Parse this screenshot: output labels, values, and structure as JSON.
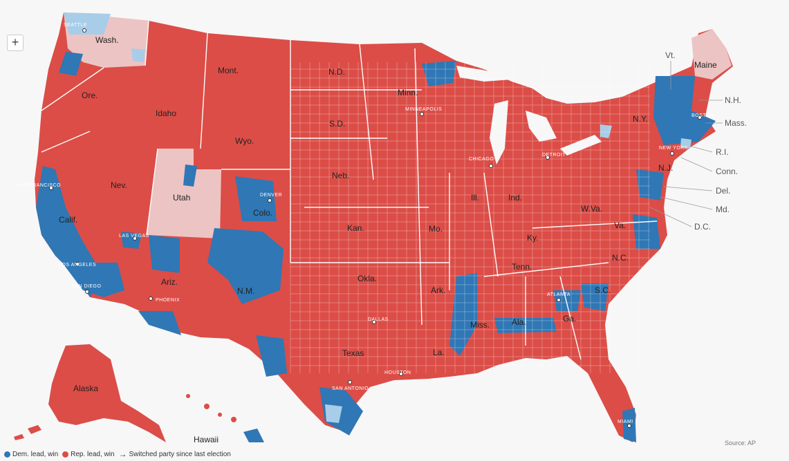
{
  "controls": {
    "zoom_in": "+"
  },
  "colors": {
    "dem": "#2f77b5",
    "dem_light": "#a8cde8",
    "rep": "#dc4d47",
    "rep_light": "#ecc4c4",
    "border": "#ffffff",
    "background": "#f7f7f7"
  },
  "legend": {
    "dem": "Dem. lead, win",
    "rep": "Rep. lead, win",
    "switched": "Switched party since last election"
  },
  "source": "Source: AP",
  "state_labels": {
    "wash": "Wash.",
    "ore": "Ore.",
    "calif": "Calif.",
    "nev": "Nev.",
    "idaho": "Idaho",
    "mont": "Mont.",
    "wyo": "Wyo.",
    "utah": "Utah",
    "colo": "Colo.",
    "ariz": "Ariz.",
    "nm": "N.M.",
    "nd": "N.D.",
    "sd": "S.D.",
    "neb": "Neb.",
    "kan": "Kan.",
    "okla": "Okla.",
    "texas": "Texas",
    "minn": "Minn.",
    "mo": "Mo.",
    "ark": "Ark.",
    "la": "La.",
    "ill": "Ill.",
    "ind": "Ind.",
    "ky": "Ky.",
    "tenn": "Tenn.",
    "miss": "Miss.",
    "ala": "Ala.",
    "ga": "Ga.",
    "sc": "S.C.",
    "nc": "N.C.",
    "va": "Va.",
    "wva": "W.Va.",
    "ny": "N.Y.",
    "nj": "N.J.",
    "maine": "Maine",
    "alaska": "Alaska",
    "hawaii": "Hawaii"
  },
  "callouts": {
    "vt": "Vt.",
    "nh": "N.H.",
    "mass": "Mass.",
    "ri": "R.I.",
    "conn": "Conn.",
    "del": "Del.",
    "md": "Md.",
    "dc": "D.C."
  },
  "cities": {
    "seattle": "SEATTLE",
    "sf": "SAN FRANCISCO",
    "la": "LOS ANGELES",
    "sd": "SAN DIEGO",
    "lv": "LAS VEGAS",
    "phoenix": "PHOENIX",
    "denver": "DENVER",
    "dallas": "DALLAS",
    "houston": "HOUSTON",
    "sa": "SAN ANTONIO",
    "minneapolis": "MINNEAPOLIS",
    "chicago": "CHICAGO",
    "detroit": "DETROIT",
    "atlanta": "ATLANTA",
    "miami": "MIAMI",
    "ny": "NEW YORK",
    "boston": "BOSTON"
  }
}
